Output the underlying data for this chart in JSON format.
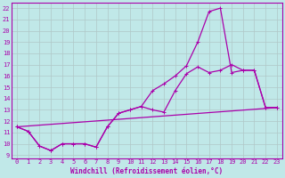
{
  "xlabel": "Windchill (Refroidissement éolien,°C)",
  "bg_color": "#c0e8e8",
  "grid_color": "#b0c8c8",
  "line_color": "#aa00aa",
  "x_ticks": [
    0,
    1,
    2,
    3,
    4,
    5,
    6,
    7,
    8,
    9,
    10,
    11,
    12,
    13,
    14,
    15,
    16,
    17,
    18,
    19,
    20,
    21,
    22,
    23
  ],
  "y_ticks": [
    9,
    10,
    11,
    12,
    13,
    14,
    15,
    16,
    17,
    18,
    19,
    20,
    21,
    22
  ],
  "xlim": [
    -0.5,
    23.5
  ],
  "ylim": [
    8.7,
    22.5
  ],
  "line1_x": [
    0,
    1,
    2,
    3,
    4,
    5,
    6,
    7,
    8,
    9,
    10,
    11,
    12,
    13,
    14,
    15,
    16,
    17,
    18,
    19,
    20,
    21,
    22,
    23
  ],
  "line1_y": [
    11.5,
    11.1,
    9.8,
    9.4,
    10.0,
    10.0,
    10.0,
    9.7,
    11.5,
    12.7,
    13.0,
    13.3,
    14.7,
    15.3,
    16.0,
    16.9,
    19.0,
    21.7,
    22.0,
    16.3,
    16.5,
    16.5,
    13.2,
    13.2
  ],
  "line2_x": [
    0,
    1,
    2,
    3,
    4,
    5,
    6,
    7,
    8,
    9,
    10,
    11,
    12,
    13,
    14,
    15,
    16,
    17,
    18,
    19,
    20,
    21,
    22,
    23
  ],
  "line2_y": [
    11.5,
    11.1,
    9.8,
    9.4,
    10.0,
    10.0,
    10.0,
    9.7,
    11.5,
    12.7,
    13.0,
    13.3,
    13.0,
    12.8,
    14.7,
    16.2,
    16.8,
    16.3,
    16.5,
    17.0,
    16.5,
    16.5,
    13.2,
    13.2
  ],
  "line3_x": [
    0,
    23
  ],
  "line3_y": [
    11.5,
    13.2
  ],
  "marker_size": 3.0,
  "line_width": 0.9,
  "font_size": 5.5,
  "tick_font_size": 5.0
}
